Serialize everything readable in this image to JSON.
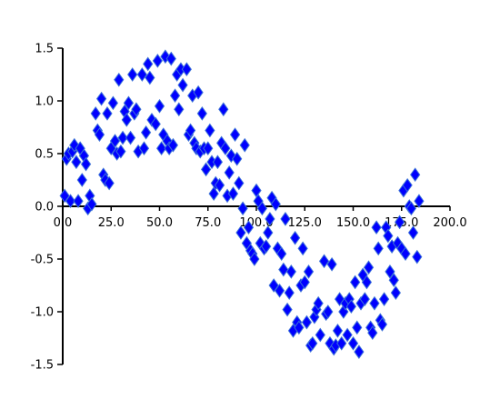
{
  "chart_data": {
    "type": "scatter",
    "title": "",
    "xlabel": "",
    "ylabel": "",
    "xlim": [
      0,
      200
    ],
    "ylim": [
      -1.5,
      1.5
    ],
    "x_ticks": [
      "0.0",
      "25.0",
      "50.0",
      "75.0",
      "100.0",
      "125.0",
      "150.0",
      "175.0",
      "200.0"
    ],
    "y_ticks": [
      "1.5",
      "1.0",
      "0.5",
      "0.0",
      "-0.5",
      "-1.0",
      "-1.5"
    ],
    "grid": false,
    "marker": "diamond",
    "colors": {
      "marker_fill": "#0000ff",
      "marker_edge": "#3a6fd8",
      "axis": "#000000"
    },
    "series": [
      {
        "points": [
          [
            1,
            0.1
          ],
          [
            2,
            0.45
          ],
          [
            3,
            0.5
          ],
          [
            4,
            0.05
          ],
          [
            5,
            0.52
          ],
          [
            6,
            0.58
          ],
          [
            7,
            0.42
          ],
          [
            8,
            0.05
          ],
          [
            9,
            0.55
          ],
          [
            10,
            0.25
          ],
          [
            11,
            0.48
          ],
          [
            12,
            0.4
          ],
          [
            13,
            -0.02
          ],
          [
            14,
            0.1
          ],
          [
            15,
            0.02
          ],
          [
            17,
            0.88
          ],
          [
            18,
            0.72
          ],
          [
            19,
            0.68
          ],
          [
            20,
            1.02
          ],
          [
            21,
            0.3
          ],
          [
            22,
            0.25
          ],
          [
            23,
            0.88
          ],
          [
            24,
            0.22
          ],
          [
            25,
            0.55
          ],
          [
            26,
            0.98
          ],
          [
            27,
            0.62
          ],
          [
            28,
            0.5
          ],
          [
            29,
            1.2
          ],
          [
            30,
            0.52
          ],
          [
            31,
            0.65
          ],
          [
            32,
            0.9
          ],
          [
            33,
            0.82
          ],
          [
            34,
            0.98
          ],
          [
            35,
            0.65
          ],
          [
            36,
            1.25
          ],
          [
            37,
            0.88
          ],
          [
            38,
            0.92
          ],
          [
            39,
            0.52
          ],
          [
            41,
            1.25
          ],
          [
            42,
            0.55
          ],
          [
            43,
            0.7
          ],
          [
            44,
            1.35
          ],
          [
            45,
            1.22
          ],
          [
            46,
            0.82
          ],
          [
            48,
            0.78
          ],
          [
            49,
            1.38
          ],
          [
            50,
            0.95
          ],
          [
            51,
            0.55
          ],
          [
            52,
            0.68
          ],
          [
            53,
            1.42
          ],
          [
            54,
            0.62
          ],
          [
            55,
            0.55
          ],
          [
            56,
            1.4
          ],
          [
            57,
            0.58
          ],
          [
            58,
            1.05
          ],
          [
            59,
            1.25
          ],
          [
            60,
            0.92
          ],
          [
            61,
            1.3
          ],
          [
            62,
            1.15
          ],
          [
            64,
            1.3
          ],
          [
            65,
            0.68
          ],
          [
            66,
            0.72
          ],
          [
            67,
            1.05
          ],
          [
            68,
            0.6
          ],
          [
            69,
            0.55
          ],
          [
            70,
            1.08
          ],
          [
            71,
            0.52
          ],
          [
            72,
            0.88
          ],
          [
            73,
            0.55
          ],
          [
            74,
            0.35
          ],
          [
            75,
            0.55
          ],
          [
            76,
            0.72
          ],
          [
            77,
            0.42
          ],
          [
            78,
            0.12
          ],
          [
            79,
            0.22
          ],
          [
            80,
            0.42
          ],
          [
            81,
            0.2
          ],
          [
            82,
            0.6
          ],
          [
            83,
            0.92
          ],
          [
            84,
            0.55
          ],
          [
            85,
            0.1
          ],
          [
            86,
            0.32
          ],
          [
            87,
            0.48
          ],
          [
            88,
            0.12
          ],
          [
            89,
            0.68
          ],
          [
            90,
            0.45
          ],
          [
            91,
            0.22
          ],
          [
            92,
            -0.25
          ],
          [
            93,
            -0.02
          ],
          [
            94,
            0.58
          ],
          [
            95,
            -0.35
          ],
          [
            96,
            -0.2
          ],
          [
            97,
            -0.42
          ],
          [
            98,
            -0.45
          ],
          [
            99,
            -0.5
          ],
          [
            100,
            0.15
          ],
          [
            101,
            0.05
          ],
          [
            102,
            -0.35
          ],
          [
            103,
            -0.02
          ],
          [
            104,
            -0.4
          ],
          [
            105,
            -0.38
          ],
          [
            106,
            -0.25
          ],
          [
            107,
            -0.12
          ],
          [
            108,
            0.08
          ],
          [
            109,
            -0.75
          ],
          [
            110,
            0.02
          ],
          [
            111,
            -0.4
          ],
          [
            112,
            -0.8
          ],
          [
            113,
            -0.45
          ],
          [
            114,
            -0.6
          ],
          [
            115,
            -0.12
          ],
          [
            116,
            -0.98
          ],
          [
            117,
            -0.82
          ],
          [
            118,
            -0.62
          ],
          [
            119,
            -1.18
          ],
          [
            120,
            -0.3
          ],
          [
            121,
            -1.1
          ],
          [
            122,
            -1.15
          ],
          [
            123,
            -0.75
          ],
          [
            124,
            -0.4
          ],
          [
            125,
            -0.72
          ],
          [
            126,
            -1.1
          ],
          [
            127,
            -0.62
          ],
          [
            128,
            -1.32
          ],
          [
            129,
            -1.3
          ],
          [
            130,
            -1.05
          ],
          [
            131,
            -0.98
          ],
          [
            132,
            -0.92
          ],
          [
            133,
            -1.22
          ],
          [
            135,
            -0.52
          ],
          [
            136,
            -1.02
          ],
          [
            137,
            -1.0
          ],
          [
            138,
            -1.3
          ],
          [
            139,
            -0.55
          ],
          [
            140,
            -1.35
          ],
          [
            141,
            -1.32
          ],
          [
            142,
            -1.18
          ],
          [
            143,
            -0.88
          ],
          [
            144,
            -1.3
          ],
          [
            145,
            -1.0
          ],
          [
            146,
            -0.92
          ],
          [
            147,
            -1.22
          ],
          [
            148,
            -0.88
          ],
          [
            149,
            -0.95
          ],
          [
            150,
            -1.3
          ],
          [
            151,
            -0.72
          ],
          [
            152,
            -1.15
          ],
          [
            153,
            -1.38
          ],
          [
            154,
            -0.92
          ],
          [
            155,
            -0.65
          ],
          [
            156,
            -0.88
          ],
          [
            157,
            -0.72
          ],
          [
            158,
            -0.58
          ],
          [
            159,
            -1.15
          ],
          [
            160,
            -1.2
          ],
          [
            161,
            -0.92
          ],
          [
            162,
            -0.2
          ],
          [
            163,
            -0.4
          ],
          [
            164,
            -1.08
          ],
          [
            165,
            -1.12
          ],
          [
            166,
            -0.88
          ],
          [
            167,
            -0.2
          ],
          [
            168,
            -0.28
          ],
          [
            169,
            -0.62
          ],
          [
            170,
            -0.38
          ],
          [
            171,
            -0.7
          ],
          [
            172,
            -0.82
          ],
          [
            173,
            -0.35
          ],
          [
            174,
            -0.15
          ],
          [
            175,
            -0.4
          ],
          [
            176,
            0.15
          ],
          [
            177,
            -0.45
          ],
          [
            178,
            0.2
          ],
          [
            179,
            0.0
          ],
          [
            180,
            -0.02
          ],
          [
            181,
            -0.25
          ],
          [
            182,
            0.3
          ],
          [
            183,
            -0.48
          ],
          [
            184,
            0.05
          ]
        ]
      }
    ]
  }
}
